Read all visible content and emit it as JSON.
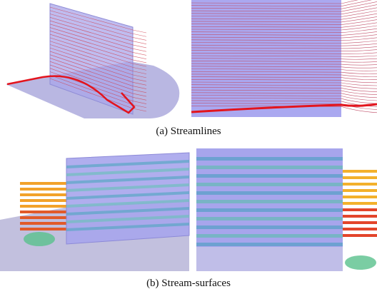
{
  "figure": {
    "panels": [
      {
        "caption": "(a) Streamlines"
      },
      {
        "caption": "(b) Stream-surfaces"
      }
    ]
  }
}
